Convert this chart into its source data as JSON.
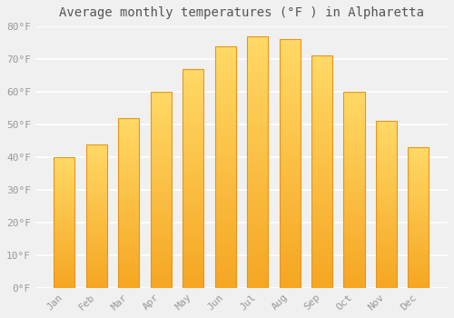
{
  "title": "Average monthly temperatures (°F ) in Alpharetta",
  "months": [
    "Jan",
    "Feb",
    "Mar",
    "Apr",
    "May",
    "Jun",
    "Jul",
    "Aug",
    "Sep",
    "Oct",
    "Nov",
    "Dec"
  ],
  "values": [
    40,
    44,
    52,
    60,
    67,
    74,
    77,
    76,
    71,
    60,
    51,
    43
  ],
  "ylim": [
    0,
    80
  ],
  "yticks": [
    0,
    10,
    20,
    30,
    40,
    50,
    60,
    70,
    80
  ],
  "ytick_labels": [
    "0°F",
    "10°F",
    "20°F",
    "30°F",
    "40°F",
    "50°F",
    "60°F",
    "70°F",
    "80°F"
  ],
  "background_color": "#f0f0f0",
  "grid_color": "#ffffff",
  "bar_color_bottom": "#F5A623",
  "bar_color_top": "#FFD966",
  "bar_border_color": "#E8951A",
  "title_fontsize": 10,
  "tick_fontsize": 8,
  "bar_width": 0.65
}
